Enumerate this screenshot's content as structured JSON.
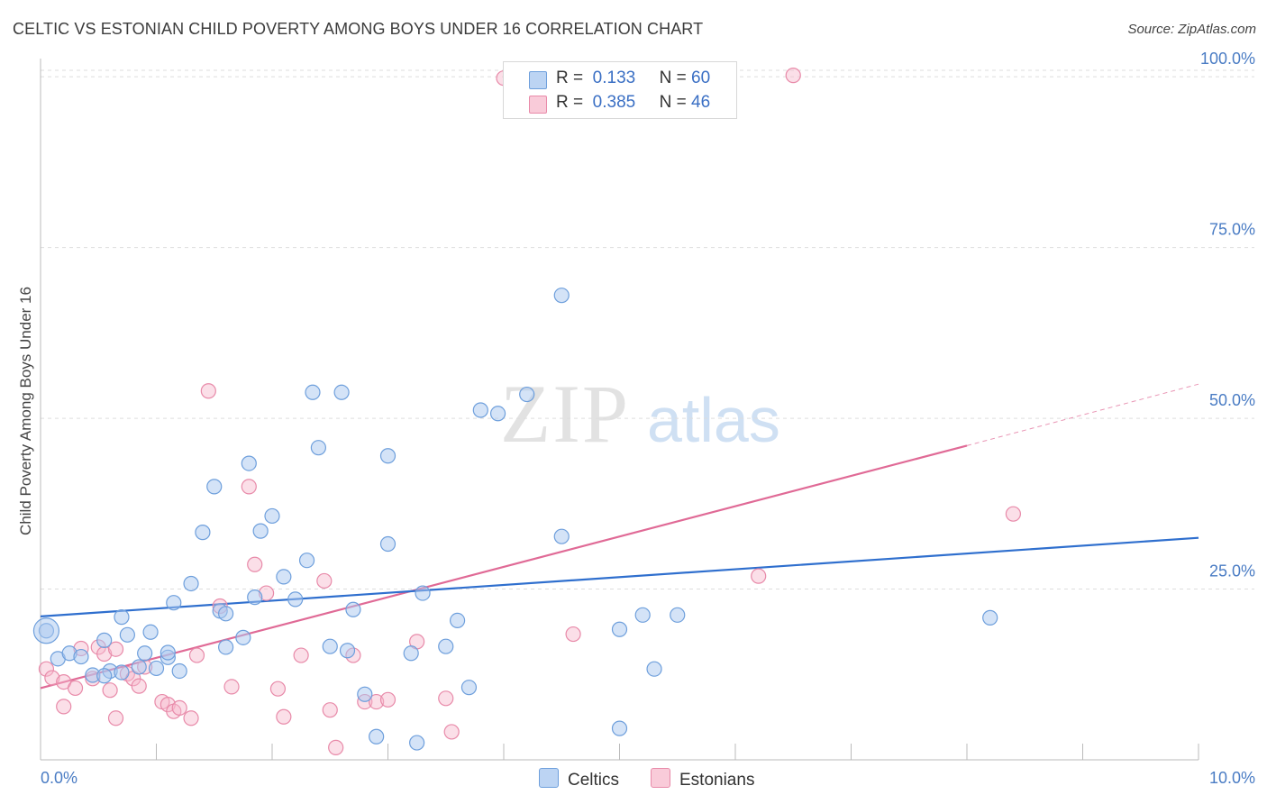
{
  "title": "CELTIC VS ESTONIAN CHILD POVERTY AMONG BOYS UNDER 16 CORRELATION CHART",
  "source": "Source: ZipAtlas.com",
  "watermark": {
    "zip": "ZIP",
    "atlas": "atlas"
  },
  "legend": {
    "series1": {
      "r_label": "R =",
      "r_value": "0.133",
      "n_label": "N =",
      "n_value": "60"
    },
    "series2": {
      "r_label": "R =",
      "r_value": "0.385",
      "n_label": "N =",
      "n_value": "46"
    }
  },
  "bottom_legend": {
    "series1": "Celtics",
    "series2": "Estonians"
  },
  "colors": {
    "celtics_fill": "#aac8ef",
    "celtics_stroke": "#6e9fdc",
    "celtics_line": "#2f6fce",
    "estonians_fill": "#f6b8cc",
    "estonians_stroke": "#e88aa9",
    "estonians_line": "#e06a96",
    "grid": "#dddddd",
    "tick_text": "#4a7cc4"
  },
  "chart_data": {
    "type": "scatter",
    "title": "CELTIC VS ESTONIAN CHILD POVERTY AMONG BOYS UNDER 16 CORRELATION CHART",
    "xlabel": "",
    "ylabel": "Child Poverty Among Boys Under 16",
    "xlim": [
      0,
      10
    ],
    "ylim": [
      0,
      102
    ],
    "x_tick_labels": [
      "0.0%",
      "10.0%"
    ],
    "y_tick_labels": [
      "25.0%",
      "50.0%",
      "75.0%",
      "100.0%"
    ],
    "y_ticks": [
      25,
      50,
      75,
      100
    ],
    "grid": true,
    "legend_position": "top-center",
    "series": [
      {
        "name": "Celtics",
        "r": 0.133,
        "n": 60,
        "trend": {
          "x": [
            0,
            10
          ],
          "y": [
            21.0,
            32.5
          ]
        },
        "points": [
          [
            0.05,
            18.9
          ],
          [
            0.15,
            14.8
          ],
          [
            0.25,
            15.6
          ],
          [
            0.35,
            15.1
          ],
          [
            0.45,
            12.4
          ],
          [
            0.55,
            17.5
          ],
          [
            0.6,
            13.0
          ],
          [
            0.55,
            12.3
          ],
          [
            0.7,
            20.9
          ],
          [
            0.75,
            18.3
          ],
          [
            0.85,
            13.6
          ],
          [
            0.95,
            18.7
          ],
          [
            1.0,
            13.4
          ],
          [
            0.7,
            12.8
          ],
          [
            0.9,
            15.6
          ],
          [
            1.1,
            15.0
          ],
          [
            1.1,
            15.7
          ],
          [
            1.15,
            23.0
          ],
          [
            1.2,
            13.0
          ],
          [
            1.3,
            25.8
          ],
          [
            1.4,
            33.3
          ],
          [
            1.5,
            40.0
          ],
          [
            1.55,
            21.8
          ],
          [
            1.6,
            16.5
          ],
          [
            1.6,
            21.4
          ],
          [
            1.8,
            43.4
          ],
          [
            1.75,
            17.9
          ],
          [
            1.85,
            23.8
          ],
          [
            1.9,
            33.5
          ],
          [
            2.0,
            35.7
          ],
          [
            2.1,
            26.8
          ],
          [
            2.2,
            23.5
          ],
          [
            2.3,
            29.2
          ],
          [
            2.35,
            53.8
          ],
          [
            2.4,
            45.7
          ],
          [
            2.5,
            16.6
          ],
          [
            2.6,
            53.8
          ],
          [
            2.65,
            16.0
          ],
          [
            2.7,
            22.0
          ],
          [
            2.8,
            9.6
          ],
          [
            2.9,
            3.4
          ],
          [
            3.0,
            31.6
          ],
          [
            3.0,
            44.5
          ],
          [
            3.2,
            15.6
          ],
          [
            3.25,
            2.5
          ],
          [
            3.3,
            24.4
          ],
          [
            3.5,
            16.6
          ],
          [
            3.6,
            20.4
          ],
          [
            3.7,
            10.6
          ],
          [
            3.8,
            51.2
          ],
          [
            3.95,
            50.7
          ],
          [
            4.2,
            53.5
          ],
          [
            4.5,
            32.7
          ],
          [
            4.5,
            68.0
          ],
          [
            5.0,
            19.1
          ],
          [
            5.0,
            4.6
          ],
          [
            5.2,
            21.2
          ],
          [
            5.3,
            13.3
          ],
          [
            5.5,
            21.2
          ],
          [
            8.2,
            20.8
          ]
        ]
      },
      {
        "name": "Estonians",
        "r": 0.385,
        "n": 46,
        "trend": {
          "x": [
            0,
            8.0
          ],
          "y": [
            10.5,
            46.0
          ]
        },
        "trend_extension": {
          "x": [
            8.0,
            10
          ],
          "y": [
            46.0,
            55.0
          ]
        },
        "points": [
          [
            0.05,
            13.3
          ],
          [
            0.1,
            12.0
          ],
          [
            0.2,
            11.4
          ],
          [
            0.2,
            7.8
          ],
          [
            0.3,
            10.5
          ],
          [
            0.35,
            16.3
          ],
          [
            0.45,
            11.9
          ],
          [
            0.5,
            16.5
          ],
          [
            0.55,
            15.5
          ],
          [
            0.6,
            10.2
          ],
          [
            0.65,
            16.2
          ],
          [
            0.65,
            6.1
          ],
          [
            0.75,
            12.6
          ],
          [
            0.8,
            11.9
          ],
          [
            0.85,
            10.8
          ],
          [
            0.9,
            13.6
          ],
          [
            1.05,
            8.5
          ],
          [
            1.1,
            8.1
          ],
          [
            1.15,
            7.1
          ],
          [
            1.2,
            7.6
          ],
          [
            1.3,
            6.1
          ],
          [
            1.35,
            15.3
          ],
          [
            1.45,
            54.0
          ],
          [
            1.55,
            22.5
          ],
          [
            1.65,
            10.7
          ],
          [
            1.8,
            40.0
          ],
          [
            1.85,
            28.6
          ],
          [
            1.95,
            24.4
          ],
          [
            2.05,
            10.4
          ],
          [
            2.1,
            6.3
          ],
          [
            2.25,
            15.3
          ],
          [
            2.45,
            26.2
          ],
          [
            2.5,
            7.3
          ],
          [
            2.55,
            1.8
          ],
          [
            2.7,
            15.3
          ],
          [
            2.8,
            8.5
          ],
          [
            2.9,
            8.5
          ],
          [
            3.0,
            8.8
          ],
          [
            3.25,
            17.3
          ],
          [
            3.5,
            9.0
          ],
          [
            3.55,
            4.1
          ],
          [
            4.0,
            99.8
          ],
          [
            4.6,
            18.4
          ],
          [
            6.2,
            26.9
          ],
          [
            6.5,
            100.2
          ],
          [
            8.4,
            36.0
          ]
        ]
      }
    ]
  }
}
